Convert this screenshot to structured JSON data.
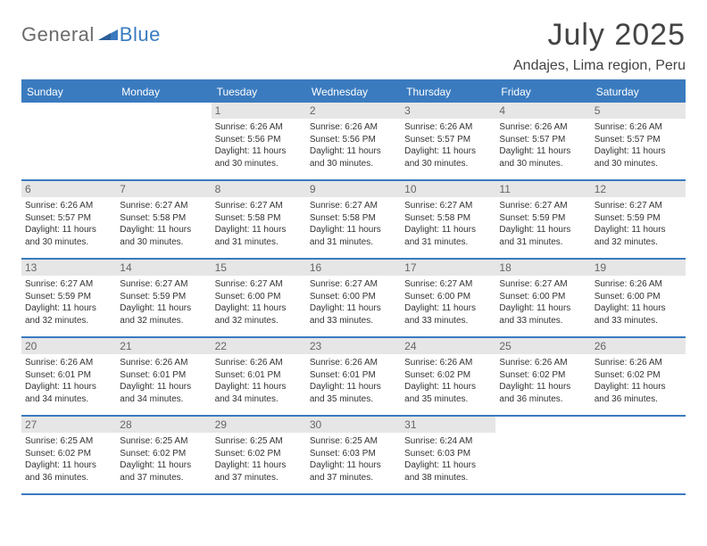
{
  "brand": {
    "part1": "General",
    "part2": "Blue"
  },
  "title": "July 2025",
  "location": "Andajes, Lima region, Peru",
  "colors": {
    "accent": "#3a7bbf",
    "daybar": "#e6e6e6",
    "text": "#333333",
    "title": "#444444",
    "logo_gray": "#6b6b6b"
  },
  "day_headers": [
    "Sunday",
    "Monday",
    "Tuesday",
    "Wednesday",
    "Thursday",
    "Friday",
    "Saturday"
  ],
  "weeks": [
    [
      null,
      null,
      {
        "n": "1",
        "sr": "6:26 AM",
        "ss": "5:56 PM",
        "dl": "11 hours and 30 minutes."
      },
      {
        "n": "2",
        "sr": "6:26 AM",
        "ss": "5:56 PM",
        "dl": "11 hours and 30 minutes."
      },
      {
        "n": "3",
        "sr": "6:26 AM",
        "ss": "5:57 PM",
        "dl": "11 hours and 30 minutes."
      },
      {
        "n": "4",
        "sr": "6:26 AM",
        "ss": "5:57 PM",
        "dl": "11 hours and 30 minutes."
      },
      {
        "n": "5",
        "sr": "6:26 AM",
        "ss": "5:57 PM",
        "dl": "11 hours and 30 minutes."
      }
    ],
    [
      {
        "n": "6",
        "sr": "6:26 AM",
        "ss": "5:57 PM",
        "dl": "11 hours and 30 minutes."
      },
      {
        "n": "7",
        "sr": "6:27 AM",
        "ss": "5:58 PM",
        "dl": "11 hours and 30 minutes."
      },
      {
        "n": "8",
        "sr": "6:27 AM",
        "ss": "5:58 PM",
        "dl": "11 hours and 31 minutes."
      },
      {
        "n": "9",
        "sr": "6:27 AM",
        "ss": "5:58 PM",
        "dl": "11 hours and 31 minutes."
      },
      {
        "n": "10",
        "sr": "6:27 AM",
        "ss": "5:58 PM",
        "dl": "11 hours and 31 minutes."
      },
      {
        "n": "11",
        "sr": "6:27 AM",
        "ss": "5:59 PM",
        "dl": "11 hours and 31 minutes."
      },
      {
        "n": "12",
        "sr": "6:27 AM",
        "ss": "5:59 PM",
        "dl": "11 hours and 32 minutes."
      }
    ],
    [
      {
        "n": "13",
        "sr": "6:27 AM",
        "ss": "5:59 PM",
        "dl": "11 hours and 32 minutes."
      },
      {
        "n": "14",
        "sr": "6:27 AM",
        "ss": "5:59 PM",
        "dl": "11 hours and 32 minutes."
      },
      {
        "n": "15",
        "sr": "6:27 AM",
        "ss": "6:00 PM",
        "dl": "11 hours and 32 minutes."
      },
      {
        "n": "16",
        "sr": "6:27 AM",
        "ss": "6:00 PM",
        "dl": "11 hours and 33 minutes."
      },
      {
        "n": "17",
        "sr": "6:27 AM",
        "ss": "6:00 PM",
        "dl": "11 hours and 33 minutes."
      },
      {
        "n": "18",
        "sr": "6:27 AM",
        "ss": "6:00 PM",
        "dl": "11 hours and 33 minutes."
      },
      {
        "n": "19",
        "sr": "6:26 AM",
        "ss": "6:00 PM",
        "dl": "11 hours and 33 minutes."
      }
    ],
    [
      {
        "n": "20",
        "sr": "6:26 AM",
        "ss": "6:01 PM",
        "dl": "11 hours and 34 minutes."
      },
      {
        "n": "21",
        "sr": "6:26 AM",
        "ss": "6:01 PM",
        "dl": "11 hours and 34 minutes."
      },
      {
        "n": "22",
        "sr": "6:26 AM",
        "ss": "6:01 PM",
        "dl": "11 hours and 34 minutes."
      },
      {
        "n": "23",
        "sr": "6:26 AM",
        "ss": "6:01 PM",
        "dl": "11 hours and 35 minutes."
      },
      {
        "n": "24",
        "sr": "6:26 AM",
        "ss": "6:02 PM",
        "dl": "11 hours and 35 minutes."
      },
      {
        "n": "25",
        "sr": "6:26 AM",
        "ss": "6:02 PM",
        "dl": "11 hours and 36 minutes."
      },
      {
        "n": "26",
        "sr": "6:26 AM",
        "ss": "6:02 PM",
        "dl": "11 hours and 36 minutes."
      }
    ],
    [
      {
        "n": "27",
        "sr": "6:25 AM",
        "ss": "6:02 PM",
        "dl": "11 hours and 36 minutes."
      },
      {
        "n": "28",
        "sr": "6:25 AM",
        "ss": "6:02 PM",
        "dl": "11 hours and 37 minutes."
      },
      {
        "n": "29",
        "sr": "6:25 AM",
        "ss": "6:02 PM",
        "dl": "11 hours and 37 minutes."
      },
      {
        "n": "30",
        "sr": "6:25 AM",
        "ss": "6:03 PM",
        "dl": "11 hours and 37 minutes."
      },
      {
        "n": "31",
        "sr": "6:24 AM",
        "ss": "6:03 PM",
        "dl": "11 hours and 38 minutes."
      },
      null,
      null
    ]
  ],
  "labels": {
    "sunrise": "Sunrise:",
    "sunset": "Sunset:",
    "daylight": "Daylight:"
  }
}
